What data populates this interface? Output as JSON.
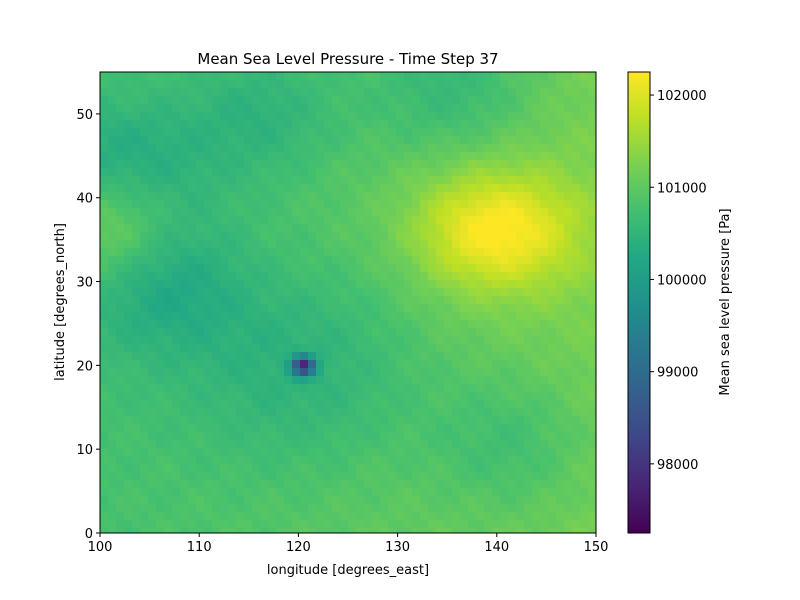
{
  "chart_data": {
    "type": "heatmap",
    "title": "Mean Sea Level Pressure - Time Step 37",
    "xlabel": "longitude [degrees_east]",
    "ylabel": "latitude [degrees_north]",
    "xlim": [
      100,
      150
    ],
    "ylim": [
      0,
      55
    ],
    "x_ticks": [
      100,
      110,
      120,
      130,
      140,
      150
    ],
    "x_tick_labels": [
      "100",
      "110",
      "120",
      "130",
      "140",
      "150"
    ],
    "y_ticks": [
      0,
      10,
      20,
      30,
      40,
      50
    ],
    "y_tick_labels": [
      "0",
      "10",
      "20",
      "30",
      "40",
      "50"
    ],
    "colormap": "viridis",
    "colorbar": {
      "label": "Mean sea level pressure [Pa]",
      "range": [
        97250,
        102250
      ],
      "ticks": [
        98000,
        99000,
        100000,
        101000,
        102000
      ],
      "tick_labels": [
        "98000",
        "99000",
        "100000",
        "101000",
        "102000"
      ]
    },
    "background_value": 101000,
    "features": [
      {
        "kind": "low",
        "lon": 120.5,
        "lat": 19.9,
        "value": 97250,
        "note": "tropical cyclone center"
      },
      {
        "kind": "low",
        "lon": 141.5,
        "lat": 10.5,
        "value": 100600
      },
      {
        "kind": "low",
        "lon": 116.5,
        "lat": 50.0,
        "value": 100550
      },
      {
        "kind": "low",
        "lon": 135.5,
        "lat": 53.5,
        "value": 100500
      },
      {
        "kind": "low",
        "lon": 102.0,
        "lat": 42.0,
        "value": 100300
      },
      {
        "kind": "low",
        "lon": 106.0,
        "lat": 30.0,
        "value": 100450
      },
      {
        "kind": "high",
        "lon": 143.0,
        "lat": 36.0,
        "value": 101550
      },
      {
        "kind": "high",
        "lon": 101.0,
        "lat": 37.0,
        "value": 101900
      },
      {
        "kind": "high",
        "lon": 138.0,
        "lat": 36.0,
        "value": 101800
      }
    ]
  }
}
